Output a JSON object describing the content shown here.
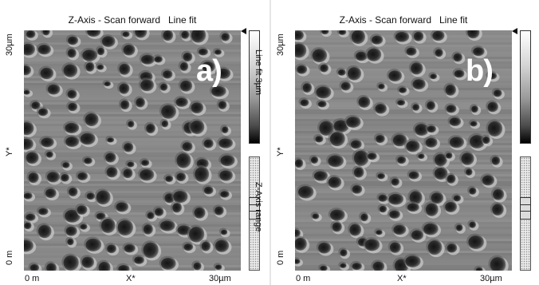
{
  "panels": [
    {
      "title_left": "Z-Axis - Scan forward",
      "title_right": "Line fit",
      "label": "a)",
      "y_top": "30µm",
      "y_mid": "Y*",
      "y_bottom": "0 m",
      "x_left": "0 m",
      "x_mid": "X*",
      "x_right": "30µm",
      "colorbar_label": "Line fit 3µm",
      "range_label": "Z-Axis range"
    },
    {
      "title_left": "Z-Axis - Scan forward",
      "title_right": "Line fit",
      "label": "b)",
      "y_top": "30µm",
      "y_mid": "Y*",
      "y_bottom": "0 m",
      "x_left": "0 m",
      "x_mid": "X*",
      "x_right": "30µm"
    }
  ]
}
